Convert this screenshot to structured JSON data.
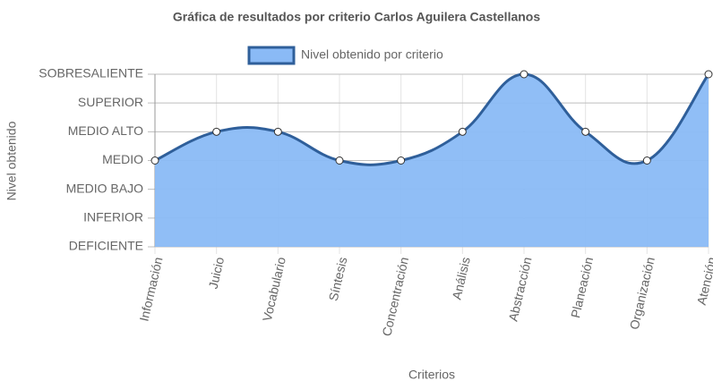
{
  "chart_data": {
    "type": "area",
    "title": "Gráfica de resultados por criterio Carlos Aguilera Castellanos",
    "x_label": "Criterios",
    "y_label": "Nivel obtenido",
    "categories": [
      "Información",
      "Juicio",
      "Vocabulario",
      "Síntesis",
      "Concentración",
      "Análisis",
      "Abstracción",
      "Planeación",
      "Organización",
      "Atención"
    ],
    "series": [
      {
        "name": "Nivel obtenido por criterio",
        "color": "#2f5f9a",
        "fill": "#8abaf6",
        "values": [
          3,
          4,
          4,
          3,
          3,
          4,
          6,
          4,
          3,
          6
        ]
      }
    ],
    "ylim": [
      0,
      6
    ],
    "yticks": [
      {
        "value": 0,
        "label": "DEFICIENTE"
      },
      {
        "value": 1,
        "label": "INFERIOR"
      },
      {
        "value": 2,
        "label": "MEDIO BAJO"
      },
      {
        "value": 3,
        "label": "MEDIO"
      },
      {
        "value": 4,
        "label": "MEDIO ALTO"
      },
      {
        "value": 5,
        "label": "SUPERIOR"
      },
      {
        "value": 6,
        "label": "SOBRESALIENTE"
      }
    ],
    "grid": true
  }
}
